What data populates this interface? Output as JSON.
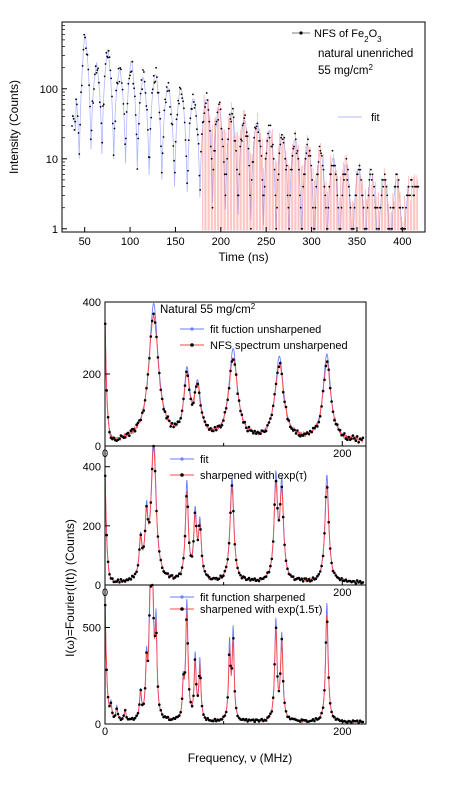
{
  "chart_data": [
    {
      "id": "nfs_time",
      "type": "scatter",
      "xlabel": "Time (ns)",
      "ylabel": "Intensity (Counts)",
      "xlim": [
        25,
        425
      ],
      "ylim": [
        0.9,
        900
      ],
      "yscale": "log",
      "xticks": [
        50,
        100,
        150,
        200,
        250,
        300,
        350,
        400
      ],
      "yticks": [
        1,
        10,
        100
      ],
      "annotations": [
        "natural unenriched",
        "55 mg/cm²"
      ],
      "legend": {
        "position": "top-right",
        "entries": [
          "NFS of Fe₂O₃",
          "fit"
        ]
      },
      "colors": {
        "data": "#000000",
        "fit_envelope": "#b0b8ff",
        "fit_spikes": "#ff5a5a"
      },
      "series": [
        {
          "name": "NFS of Fe₂O₃",
          "kind": "points",
          "note_peaks": "quantum-beat maxima",
          "peaks": [
            {
              "x": 40,
              "y": 140
            },
            {
              "x": 50,
              "y": 600
            },
            {
              "x": 62,
              "y": 230
            },
            {
              "x": 75,
              "y": 360
            },
            {
              "x": 88,
              "y": 180
            },
            {
              "x": 101,
              "y": 250
            },
            {
              "x": 115,
              "y": 140
            },
            {
              "x": 128,
              "y": 160
            },
            {
              "x": 142,
              "y": 100
            },
            {
              "x": 156,
              "y": 100
            },
            {
              "x": 170,
              "y": 70
            },
            {
              "x": 184,
              "y": 70
            },
            {
              "x": 198,
              "y": 50
            },
            {
              "x": 212,
              "y": 45
            },
            {
              "x": 226,
              "y": 35
            },
            {
              "x": 240,
              "y": 32
            },
            {
              "x": 254,
              "y": 25
            },
            {
              "x": 268,
              "y": 22
            },
            {
              "x": 282,
              "y": 18
            },
            {
              "x": 296,
              "y": 15
            },
            {
              "x": 310,
              "y": 12
            },
            {
              "x": 324,
              "y": 10
            },
            {
              "x": 338,
              "y": 8
            },
            {
              "x": 352,
              "y": 7
            },
            {
              "x": 366,
              "y": 6
            },
            {
              "x": 380,
              "y": 5
            },
            {
              "x": 394,
              "y": 5
            },
            {
              "x": 408,
              "y": 4
            }
          ]
        },
        {
          "name": "fit",
          "kind": "line",
          "minima_x": [
            44,
            57,
            69,
            82,
            95,
            108,
            121,
            135,
            149,
            163,
            177,
            191,
            205,
            219,
            233,
            247,
            261,
            275,
            289,
            303,
            317,
            331,
            345,
            359,
            373,
            387,
            401
          ]
        }
      ]
    },
    {
      "id": "fourier_unsharpened",
      "type": "line",
      "xlim": [
        0,
        220
      ],
      "ylim": [
        0,
        400
      ],
      "xticks": [
        0,
        200
      ],
      "yticks": [
        0,
        200,
        400
      ],
      "annotations": [
        "Natural 55 mg/cm²"
      ],
      "legend": {
        "position": "top-right",
        "entries": [
          "fit fuction unsharpened",
          "NFS spectrum unsharpened"
        ]
      },
      "colors": {
        "fit": "#6a7dff",
        "data": "#ff4a4a"
      },
      "series": [
        {
          "name": "NFS spectrum unsharpened",
          "baseline": 12,
          "origin_y": 380,
          "peaks": [
            {
              "x": 41,
              "y": 345,
              "w": 5
            },
            {
              "x": 69,
              "y": 160,
              "w": 3
            },
            {
              "x": 78,
              "y": 130,
              "w": 3.5
            },
            {
              "x": 108,
              "y": 228,
              "w": 4.5
            },
            {
              "x": 147,
              "y": 210,
              "w": 4.5
            },
            {
              "x": 187,
              "y": 218,
              "w": 4
            }
          ]
        }
      ]
    },
    {
      "id": "fourier_sharpened_1",
      "type": "line",
      "xlim": [
        0,
        220
      ],
      "ylim": [
        0,
        470
      ],
      "xticks": [
        0,
        200
      ],
      "yticks": [
        0,
        200,
        400
      ],
      "legend": {
        "position": "top-right",
        "entries": [
          "fit",
          "sharpened with exp(τ)"
        ]
      },
      "colors": {
        "fit": "#6a7dff",
        "data": "#ff4a4a"
      },
      "series": [
        {
          "name": "sharpened with exp(τ)",
          "baseline": 8,
          "origin_y": 420,
          "peaks": [
            {
              "x": 30,
              "y": 120,
              "w": 1.5
            },
            {
              "x": 35,
              "y": 180,
              "w": 1.5
            },
            {
              "x": 41,
              "y": 450,
              "w": 2.5
            },
            {
              "x": 69,
              "y": 300,
              "w": 1.5
            },
            {
              "x": 76,
              "y": 200,
              "w": 1.5
            },
            {
              "x": 80,
              "y": 170,
              "w": 1.5
            },
            {
              "x": 107,
              "y": 320,
              "w": 2
            },
            {
              "x": 144,
              "y": 310,
              "w": 1.8
            },
            {
              "x": 149,
              "y": 290,
              "w": 1.8
            },
            {
              "x": 187,
              "y": 330,
              "w": 2
            }
          ]
        }
      ]
    },
    {
      "id": "fourier_sharpened_15",
      "type": "line",
      "xlim": [
        0,
        220
      ],
      "ylim": [
        0,
        720
      ],
      "xticks": [
        0,
        200
      ],
      "yticks": [
        0,
        500
      ],
      "legend": {
        "position": "top-right",
        "entries": [
          "fit function sharpened",
          "sharpened with exp(1.5τ)"
        ]
      },
      "colors": {
        "fit": "#6a7dff",
        "data": "#ff4a4a"
      },
      "series": [
        {
          "name": "sharpened with exp(1.5τ)",
          "baseline": 10,
          "origin_y": 700,
          "peaks": [
            {
              "x": 5,
              "y": 80,
              "w": 1
            },
            {
              "x": 10,
              "y": 70,
              "w": 1
            },
            {
              "x": 17,
              "y": 50,
              "w": 1
            },
            {
              "x": 30,
              "y": 130,
              "w": 1
            },
            {
              "x": 35,
              "y": 250,
              "w": 1
            },
            {
              "x": 38,
              "y": 480,
              "w": 1.2
            },
            {
              "x": 40,
              "y": 640,
              "w": 1.2
            },
            {
              "x": 43,
              "y": 420,
              "w": 1
            },
            {
              "x": 66,
              "y": 160,
              "w": 0.8
            },
            {
              "x": 69,
              "y": 560,
              "w": 1.2
            },
            {
              "x": 76,
              "y": 300,
              "w": 1
            },
            {
              "x": 80,
              "y": 280,
              "w": 1
            },
            {
              "x": 105,
              "y": 360,
              "w": 1
            },
            {
              "x": 108,
              "y": 420,
              "w": 1
            },
            {
              "x": 144,
              "y": 470,
              "w": 1.2
            },
            {
              "x": 149,
              "y": 400,
              "w": 1.2
            },
            {
              "x": 187,
              "y": 560,
              "w": 1.3
            }
          ]
        }
      ]
    }
  ],
  "shared": {
    "ylabel": "I(ω)=Fourier(I(t)) (Counts)",
    "xlabel": "Frequency, ν (MHz)"
  }
}
